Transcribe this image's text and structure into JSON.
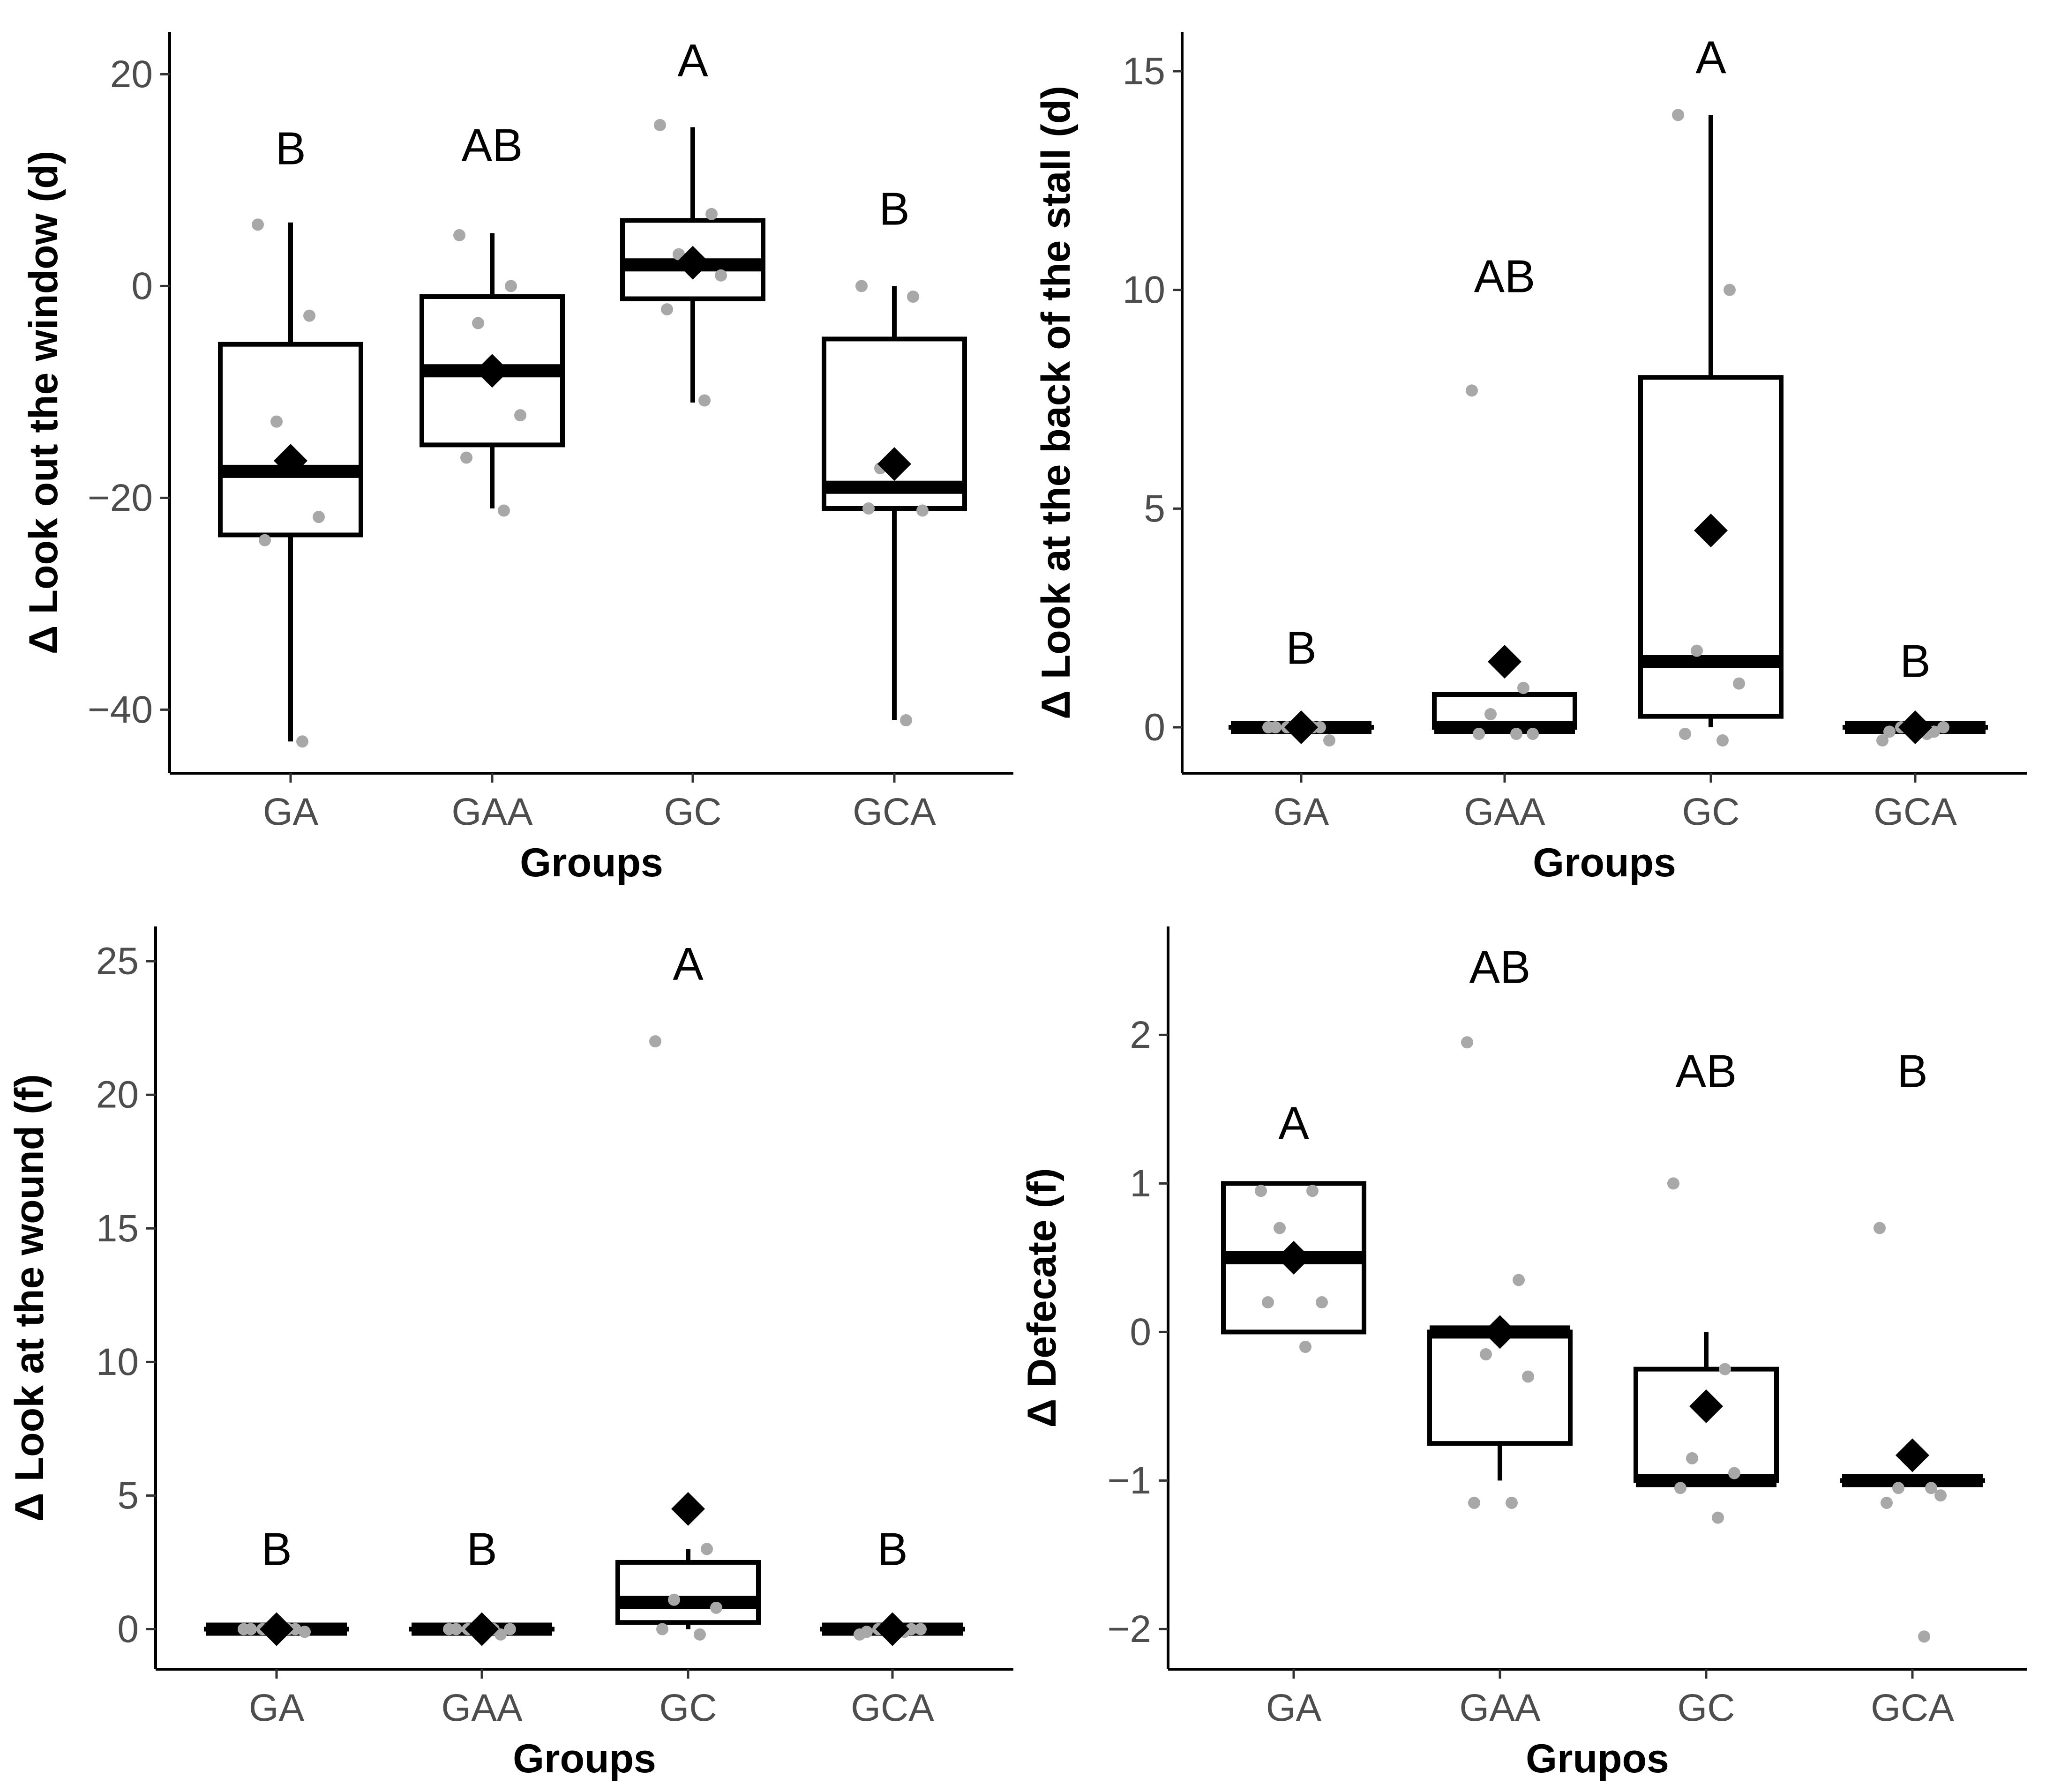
{
  "chart_data": [
    {
      "type": "boxplot",
      "panel": "top-left",
      "xlabel": "Groups",
      "ylabel": "Δ Look out the window (d)",
      "ylim": [
        -46,
        24
      ],
      "yticks": [
        20,
        0,
        -20,
        -40
      ],
      "categories": [
        "GA",
        "GAA",
        "GC",
        "GCA"
      ],
      "boxes": [
        {
          "group": "GA",
          "q1": -23.5,
          "median": -17.5,
          "q3": -5.5,
          "whisker_low": -43,
          "whisker_high": 6,
          "mean": -16.5,
          "letter": "B",
          "letter_y": 11.5,
          "points": [
            5.8,
            -2.8,
            -12.8,
            -21.8,
            -24,
            -43
          ]
        },
        {
          "group": "GAA",
          "q1": -15,
          "median": -8,
          "q3": -1,
          "whisker_low": -21,
          "whisker_high": 5,
          "mean": -8,
          "letter": "AB",
          "letter_y": 11.8,
          "points": [
            4.8,
            0,
            -3.5,
            -12.2,
            -16.2,
            -21.2
          ]
        },
        {
          "group": "GC",
          "q1": -1.2,
          "median": 2,
          "q3": 6.2,
          "whisker_low": -11,
          "whisker_high": 15,
          "mean": 2.2,
          "letter": "A",
          "letter_y": 19.8,
          "points": [
            15.2,
            6.8,
            3,
            1,
            -2.2,
            -10.8
          ]
        },
        {
          "group": "GCA",
          "q1": -21,
          "median": -19,
          "q3": -5,
          "whisker_low": -41,
          "whisker_high": 0,
          "mean": -16.8,
          "letter": "B",
          "letter_y": 5.8,
          "points": [
            0,
            -1,
            -17.2,
            -21.2,
            -21,
            -41
          ]
        }
      ]
    },
    {
      "type": "boxplot",
      "panel": "top-right",
      "xlabel": "Groups",
      "ylabel": "Δ Look at the back of the stall (d)",
      "ylim": [
        -1.05,
        15.9
      ],
      "yticks": [
        15,
        10,
        5,
        0
      ],
      "categories": [
        "GA",
        "GAA",
        "GC",
        "GCA"
      ],
      "boxes": [
        {
          "group": "GA",
          "q1": 0,
          "median": 0,
          "q3": 0,
          "whisker_low": 0,
          "whisker_high": 0,
          "mean": 0,
          "letter": "B",
          "letter_y": 1.45,
          "points": [
            0,
            0,
            0,
            -0.3,
            0,
            0
          ]
        },
        {
          "group": "GAA",
          "q1": 0,
          "median": 0,
          "q3": 0.75,
          "whisker_low": 0,
          "whisker_high": 0.75,
          "mean": 1.5,
          "letter": "AB",
          "letter_y": 9.95,
          "points": [
            7.7,
            0.9,
            0.3,
            -0.15,
            -0.15,
            -0.15
          ]
        },
        {
          "group": "GC",
          "q1": 0.25,
          "median": 1.5,
          "q3": 8,
          "whisker_low": 0,
          "whisker_high": 14,
          "mean": 4.5,
          "letter": "A",
          "letter_y": 14.95,
          "points": [
            14,
            10,
            1.75,
            1,
            -0.15,
            -0.3
          ]
        },
        {
          "group": "GCA",
          "q1": 0,
          "median": 0,
          "q3": 0,
          "whisker_low": 0,
          "whisker_high": 0,
          "mean": 0,
          "letter": "B",
          "letter_y": 1.15,
          "points": [
            -0.3,
            -0.1,
            0,
            0,
            -0.1,
            -0.15
          ]
        }
      ]
    },
    {
      "type": "boxplot",
      "panel": "bottom-left",
      "xlabel": "Groups",
      "ylabel": "Δ Look at the wound (f)",
      "ylim": [
        -1.5,
        26.3
      ],
      "yticks": [
        25,
        20,
        15,
        10,
        5,
        0
      ],
      "categories": [
        "GA",
        "GAA",
        "GC",
        "GCA"
      ],
      "boxes": [
        {
          "group": "GA",
          "q1": 0,
          "median": 0,
          "q3": 0,
          "whisker_low": 0,
          "whisker_high": 0,
          "mean": 0,
          "letter": "B",
          "letter_y": 2.4,
          "points": [
            0,
            0,
            0,
            -0.1,
            0,
            0
          ]
        },
        {
          "group": "GAA",
          "q1": 0,
          "median": 0,
          "q3": 0,
          "whisker_low": 0,
          "whisker_high": 0,
          "mean": 0,
          "letter": "B",
          "letter_y": 2.4,
          "points": [
            0,
            -0.2,
            0,
            0,
            0,
            0
          ]
        },
        {
          "group": "GC",
          "q1": 0.25,
          "median": 1,
          "q3": 2.5,
          "whisker_low": 0,
          "whisker_high": 3,
          "mean": 4.5,
          "letter": "A",
          "letter_y": 24.3,
          "points": [
            22,
            3,
            1.1,
            0.8,
            0,
            -0.2
          ]
        },
        {
          "group": "GCA",
          "q1": 0,
          "median": 0,
          "q3": 0,
          "whisker_low": 0,
          "whisker_high": 0,
          "mean": 0,
          "letter": "B",
          "letter_y": 2.4,
          "points": [
            -0.2,
            0,
            0,
            0,
            -0.1,
            -0.1
          ]
        }
      ]
    },
    {
      "type": "boxplot",
      "panel": "bottom-right",
      "xlabel": "Grupos",
      "ylabel": "Δ Defecate (f)",
      "ylim": [
        -2.27,
        2.73
      ],
      "yticks": [
        2,
        1,
        0,
        -1,
        -2
      ],
      "categories": [
        "GA",
        "GAA",
        "GC",
        "GCA"
      ],
      "boxes": [
        {
          "group": "GA",
          "q1": 0,
          "median": 0.5,
          "q3": 1,
          "whisker_low": 0,
          "whisker_high": 1,
          "mean": 0.5,
          "letter": "A",
          "letter_y": 1.3,
          "points": [
            0.95,
            0.95,
            0.7,
            0.2,
            0.2,
            -0.1
          ]
        },
        {
          "group": "GAA",
          "q1": -0.75,
          "median": 0,
          "q3": 0,
          "whisker_low": -1,
          "whisker_high": 0,
          "mean": 0,
          "letter": "AB",
          "letter_y": 2.35,
          "points": [
            1.95,
            0.35,
            -0.15,
            -0.3,
            -1.15,
            -1.15
          ]
        },
        {
          "group": "GC",
          "q1": -1,
          "median": -1,
          "q3": -0.25,
          "whisker_low": -1,
          "whisker_high": 0,
          "mean": -0.5,
          "letter": "AB",
          "letter_y": 1.65,
          "points": [
            1,
            -0.25,
            -0.85,
            -0.95,
            -1.05,
            -1.25
          ]
        },
        {
          "group": "GCA",
          "q1": -1,
          "median": -1,
          "q3": -1,
          "whisker_low": -1,
          "whisker_high": -1,
          "mean": -0.83,
          "letter": "B",
          "letter_y": 1.65,
          "points": [
            0.7,
            -1.05,
            -1.05,
            -1.1,
            -1.15,
            -2.05
          ]
        }
      ]
    }
  ]
}
